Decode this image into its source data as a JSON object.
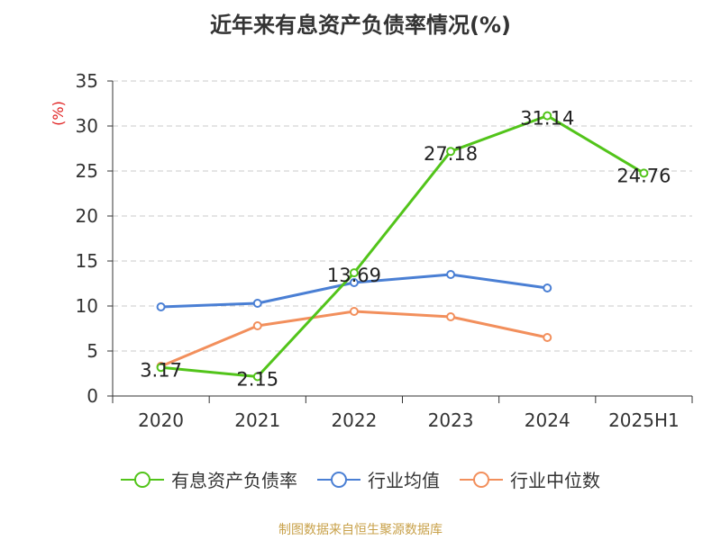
{
  "chart_data": {
    "type": "line",
    "title": "近年来有息资产负债率情况(%)",
    "ylabel": "(%)",
    "categories": [
      "2020",
      "2021",
      "2022",
      "2023",
      "2024",
      "2025H1"
    ],
    "ylim": [
      0,
      35
    ],
    "yticks": [
      0,
      5,
      10,
      15,
      20,
      25,
      30,
      35
    ],
    "grid": true,
    "legend_position": "bottom",
    "series": [
      {
        "name": "有息资产负债率",
        "color": "#52c41a",
        "values": [
          3.17,
          2.15,
          13.69,
          27.18,
          31.14,
          24.76
        ],
        "labels": [
          "3.17",
          "2.15",
          "13.69",
          "27.18",
          "31.14",
          "24.76"
        ]
      },
      {
        "name": "行业均值",
        "color": "#4a7fd4",
        "values": [
          9.9,
          10.3,
          12.6,
          13.5,
          12.0,
          null
        ]
      },
      {
        "name": "行业中位数",
        "color": "#f28f5c",
        "values": [
          3.3,
          7.8,
          9.4,
          8.8,
          6.5,
          null
        ]
      }
    ]
  },
  "source_note": "制图数据来自恒生聚源数据库"
}
